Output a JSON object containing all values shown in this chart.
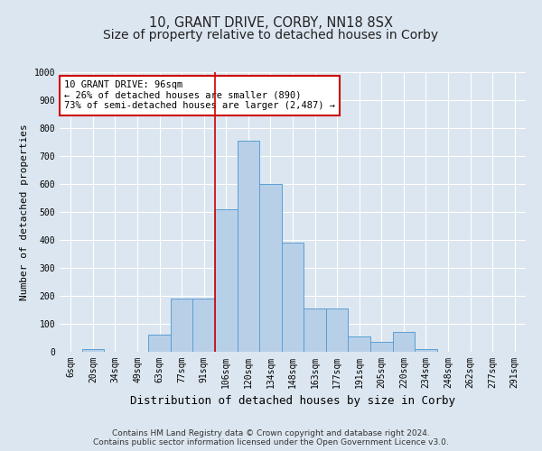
{
  "title": "10, GRANT DRIVE, CORBY, NN18 8SX",
  "subtitle": "Size of property relative to detached houses in Corby",
  "xlabel": "Distribution of detached houses by size in Corby",
  "ylabel": "Number of detached properties",
  "categories": [
    "6sqm",
    "20sqm",
    "34sqm",
    "49sqm",
    "63sqm",
    "77sqm",
    "91sqm",
    "106sqm",
    "120sqm",
    "134sqm",
    "148sqm",
    "163sqm",
    "177sqm",
    "191sqm",
    "205sqm",
    "220sqm",
    "234sqm",
    "248sqm",
    "262sqm",
    "277sqm",
    "291sqm"
  ],
  "values": [
    0,
    10,
    0,
    0,
    60,
    190,
    190,
    510,
    755,
    600,
    390,
    155,
    155,
    55,
    35,
    70,
    10,
    0,
    0,
    0,
    0
  ],
  "bar_color": "#b8cfe8",
  "bar_edge_color": "#5a9fd4",
  "highlight_line_index": 7,
  "highlight_line_color": "#cc0000",
  "annotation_text": "10 GRANT DRIVE: 96sqm\n← 26% of detached houses are smaller (890)\n73% of semi-detached houses are larger (2,487) →",
  "annotation_box_facecolor": "#ffffff",
  "annotation_box_edgecolor": "#cc0000",
  "ylim": [
    0,
    1000
  ],
  "yticks": [
    0,
    100,
    200,
    300,
    400,
    500,
    600,
    700,
    800,
    900,
    1000
  ],
  "background_color": "#dce6f0",
  "plot_background_color": "#dce6f0",
  "title_fontsize": 10.5,
  "xlabel_fontsize": 9,
  "ylabel_fontsize": 8,
  "tick_fontsize": 7,
  "annotation_fontsize": 7.5,
  "footer_text": "Contains HM Land Registry data © Crown copyright and database right 2024.\nContains public sector information licensed under the Open Government Licence v3.0.",
  "footer_fontsize": 6.5
}
